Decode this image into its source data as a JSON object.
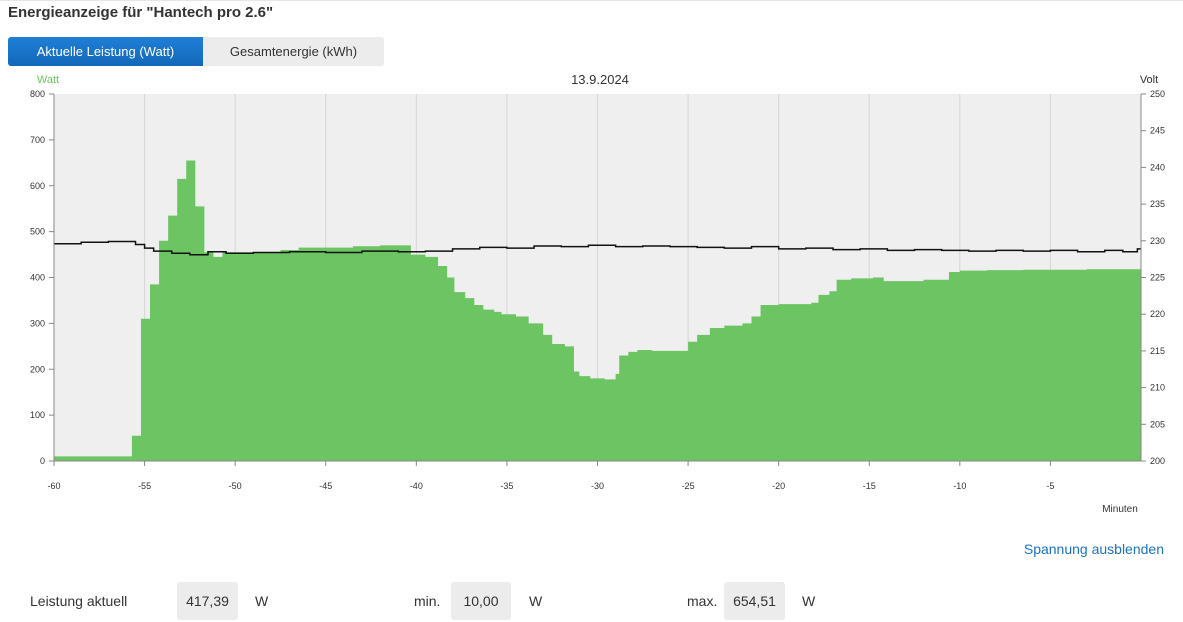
{
  "title": "Energieanzeige für \"Hantech pro 2.6\"",
  "tabs": [
    {
      "label": "Aktuelle Leistung (Watt)",
      "active": true
    },
    {
      "label": "Gesamtenergie (kWh)",
      "active": false
    }
  ],
  "colors": {
    "area": "#6cc463",
    "line": "#111111",
    "plot_bg": "#efefef",
    "left_axis_label": "#6cc463",
    "accent": "#1a73c5"
  },
  "chart_data": {
    "type": "area",
    "title": "13.9.2024",
    "left_axis_label": "Watt",
    "right_axis_label": "Volt",
    "x_axis_label": "Minuten",
    "x_range": [
      -60,
      0
    ],
    "x_ticks": [
      -60,
      -55,
      -50,
      -45,
      -40,
      -35,
      -30,
      -25,
      -20,
      -15,
      -10,
      -5
    ],
    "y_left_range": [
      0,
      800
    ],
    "y_left_ticks": [
      0,
      100,
      200,
      300,
      400,
      500,
      600,
      700,
      800
    ],
    "y_right_range": [
      200,
      250
    ],
    "y_right_ticks": [
      200,
      205,
      210,
      215,
      220,
      225,
      230,
      235,
      240,
      245,
      250
    ],
    "grid": true,
    "series": [
      {
        "name": "Watt",
        "axis": "left",
        "style": "step-area",
        "points": [
          [
            -60,
            10
          ],
          [
            -55.7,
            55
          ],
          [
            -55.2,
            310
          ],
          [
            -54.7,
            385
          ],
          [
            -54.2,
            480
          ],
          [
            -53.7,
            535
          ],
          [
            -53.2,
            615
          ],
          [
            -52.7,
            655
          ],
          [
            -52.2,
            555
          ],
          [
            -51.7,
            455
          ],
          [
            -51.2,
            445
          ],
          [
            -50.7,
            455
          ],
          [
            -49,
            455
          ],
          [
            -47.5,
            460
          ],
          [
            -46.5,
            465
          ],
          [
            -45,
            465
          ],
          [
            -43.5,
            468
          ],
          [
            -42,
            470
          ],
          [
            -40.5,
            470
          ],
          [
            -40.3,
            450
          ],
          [
            -39.5,
            445
          ],
          [
            -38.8,
            425
          ],
          [
            -38.3,
            400
          ],
          [
            -37.9,
            368
          ],
          [
            -37.3,
            355
          ],
          [
            -36.8,
            340
          ],
          [
            -36.3,
            330
          ],
          [
            -35.7,
            325
          ],
          [
            -35.3,
            320
          ],
          [
            -34.5,
            315
          ],
          [
            -33.8,
            300
          ],
          [
            -33,
            275
          ],
          [
            -32.5,
            255
          ],
          [
            -31.8,
            250
          ],
          [
            -31.3,
            195
          ],
          [
            -31,
            185
          ],
          [
            -30.4,
            180
          ],
          [
            -29.6,
            178
          ],
          [
            -29,
            190
          ],
          [
            -28.8,
            230
          ],
          [
            -28.3,
            238
          ],
          [
            -27.8,
            242
          ],
          [
            -27,
            240
          ],
          [
            -25.5,
            240
          ],
          [
            -25,
            260
          ],
          [
            -24.5,
            275
          ],
          [
            -23.8,
            290
          ],
          [
            -23,
            295
          ],
          [
            -22,
            300
          ],
          [
            -21.5,
            315
          ],
          [
            -21,
            340
          ],
          [
            -20,
            342
          ],
          [
            -18.2,
            345
          ],
          [
            -17.8,
            362
          ],
          [
            -17.2,
            370
          ],
          [
            -16.8,
            395
          ],
          [
            -16,
            398
          ],
          [
            -14.8,
            400
          ],
          [
            -14.2,
            392
          ],
          [
            -12,
            395
          ],
          [
            -11.2,
            395
          ],
          [
            -10.6,
            412
          ],
          [
            -10,
            415
          ],
          [
            -8.5,
            416
          ],
          [
            -6.5,
            417
          ],
          [
            -3,
            418
          ]
        ]
      },
      {
        "name": "Volt",
        "axis": "right",
        "style": "step-line",
        "points": [
          [
            -60,
            229.6
          ],
          [
            -58.5,
            229.8
          ],
          [
            -57,
            229.9
          ],
          [
            -55.5,
            229.5
          ],
          [
            -55,
            229.0
          ],
          [
            -54.5,
            228.6
          ],
          [
            -53.5,
            228.3
          ],
          [
            -52.5,
            228.1
          ],
          [
            -51.5,
            228.5
          ],
          [
            -50.5,
            228.3
          ],
          [
            -49,
            228.4
          ],
          [
            -47,
            228.5
          ],
          [
            -45,
            228.4
          ],
          [
            -43,
            228.6
          ],
          [
            -41,
            228.5
          ],
          [
            -39.5,
            228.6
          ],
          [
            -38,
            228.9
          ],
          [
            -36.5,
            229.1
          ],
          [
            -35,
            229.0
          ],
          [
            -33.5,
            229.3
          ],
          [
            -32,
            229.2
          ],
          [
            -30.5,
            229.4
          ],
          [
            -29,
            229.2
          ],
          [
            -27.5,
            229.3
          ],
          [
            -26,
            229.2
          ],
          [
            -24.5,
            229.1
          ],
          [
            -23,
            229.0
          ],
          [
            -21.5,
            229.2
          ],
          [
            -20,
            228.9
          ],
          [
            -18.5,
            229.0
          ],
          [
            -17,
            228.8
          ],
          [
            -15.5,
            228.9
          ],
          [
            -14,
            228.7
          ],
          [
            -12.5,
            228.8
          ],
          [
            -11,
            228.7
          ],
          [
            -9.5,
            228.6
          ],
          [
            -8,
            228.7
          ],
          [
            -6.5,
            228.6
          ],
          [
            -5,
            228.7
          ],
          [
            -3.5,
            228.5
          ],
          [
            -2,
            228.7
          ],
          [
            -1,
            228.5
          ],
          [
            -0.2,
            228.9
          ]
        ]
      }
    ]
  },
  "toggle_link": "Spannung ausblenden",
  "stats": {
    "current_label": "Leistung aktuell",
    "current_value": "417,39",
    "current_unit": "W",
    "min_label": "min.",
    "min_value": "10,00",
    "min_unit": "W",
    "max_label": "max.",
    "max_value": "654,51",
    "max_unit": "W"
  }
}
